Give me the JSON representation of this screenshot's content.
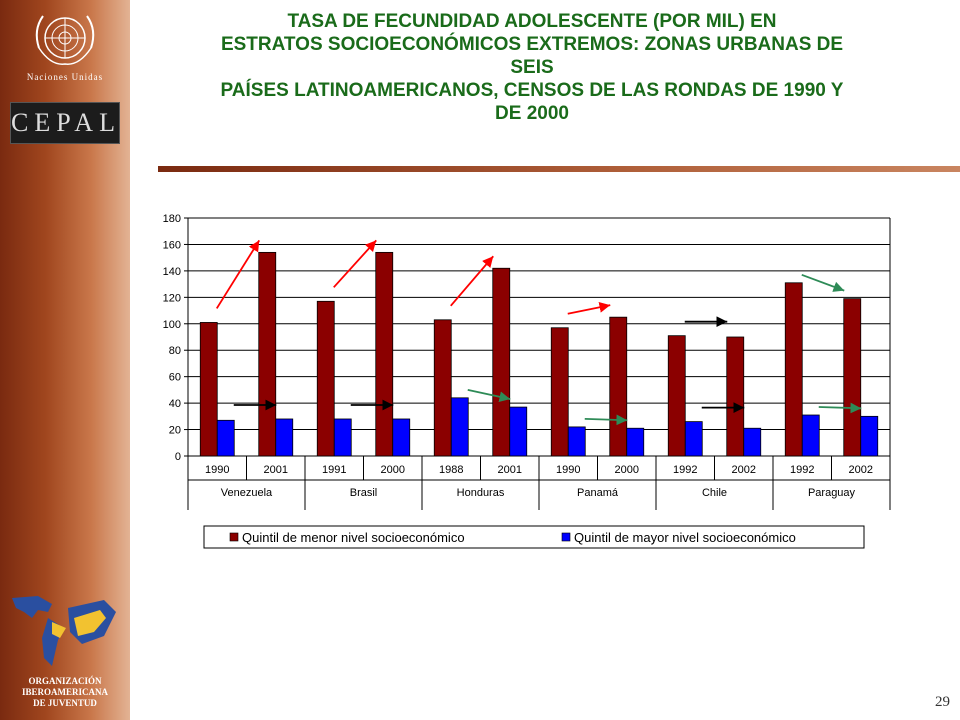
{
  "header": {
    "title_lines": [
      "TASA DE FECUNDIDAD ADOLESCENTE (POR MIL) EN",
      "ESTRATOS SOCIOECONÓMICOS EXTREMOS: ZONAS URBANAS DE",
      "SEIS",
      "PAÍSES LATINOAMERICANOS, CENSOS DE LAS RONDAS DE 1990 Y",
      "DE 2000"
    ]
  },
  "logos": {
    "un_label": "Naciones Unidas",
    "cepal_label": "CEPAL",
    "oij_lines": [
      "ORGANIZACIÓN",
      "IBEROAMERICANA",
      "DE JUVENTUD"
    ]
  },
  "footer": {
    "page_number": "29"
  },
  "colors": {
    "series_low": "#8b0000",
    "series_high": "#0000ff",
    "arrow_up": "#ff0000",
    "arrow_flat": "#000000",
    "arrow_down": "#2e8b57",
    "title": "#1a6b1a"
  },
  "chart_data": {
    "type": "bar",
    "ylim": [
      0,
      180
    ],
    "yticks": [
      0,
      20,
      40,
      60,
      80,
      100,
      120,
      140,
      160,
      180
    ],
    "grid": true,
    "legend_position": "bottom",
    "categories": [
      "1990",
      "2001",
      "1991",
      "2000",
      "1988",
      "2001",
      "1990",
      "2000",
      "1992",
      "2002",
      "1992",
      "2002"
    ],
    "groups": [
      {
        "label": "Venezuela",
        "span": 2
      },
      {
        "label": "Brasil",
        "span": 2
      },
      {
        "label": "Honduras",
        "span": 2
      },
      {
        "label": "Panamá",
        "span": 2
      },
      {
        "label": "Chile",
        "span": 2
      },
      {
        "label": "Paraguay",
        "span": 2
      }
    ],
    "series": [
      {
        "name": "Quintil de menor nivel socioeconómico",
        "values": [
          101,
          154,
          117,
          154,
          103,
          142,
          97,
          105,
          91,
          90,
          131,
          119
        ]
      },
      {
        "name": "Quintil de mayor nivel socioeconómico",
        "values": [
          27,
          28,
          28,
          28,
          44,
          37,
          22,
          21,
          26,
          21,
          31,
          30
        ]
      }
    ],
    "trend_arrows": [
      {
        "group": 0,
        "series": 0,
        "direction": "up"
      },
      {
        "group": 0,
        "series": 1,
        "direction": "flat"
      },
      {
        "group": 1,
        "series": 0,
        "direction": "up"
      },
      {
        "group": 1,
        "series": 1,
        "direction": "flat"
      },
      {
        "group": 2,
        "series": 0,
        "direction": "up"
      },
      {
        "group": 2,
        "series": 1,
        "direction": "down"
      },
      {
        "group": 3,
        "series": 0,
        "direction": "up"
      },
      {
        "group": 3,
        "series": 1,
        "direction": "down"
      },
      {
        "group": 4,
        "series": 0,
        "direction": "flat"
      },
      {
        "group": 4,
        "series": 1,
        "direction": "flat"
      },
      {
        "group": 5,
        "series": 0,
        "direction": "down"
      },
      {
        "group": 5,
        "series": 1,
        "direction": "down"
      }
    ]
  }
}
